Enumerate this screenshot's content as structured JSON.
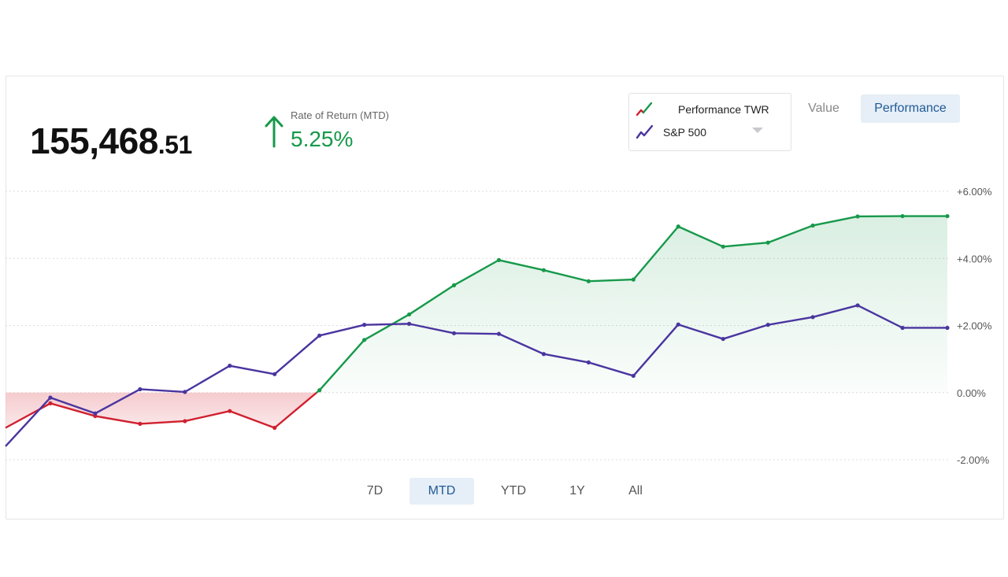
{
  "summary": {
    "balance_whole": "155,468",
    "balance_cents": ".51",
    "ror_label": "Rate of Return (MTD)",
    "ror_value": "5.25%"
  },
  "legend": {
    "series_1": "Performance TWR",
    "series_2": "S&P 500"
  },
  "view_toggle": {
    "value_label": "Value",
    "performance_label": "Performance",
    "active": "Performance"
  },
  "ranges": [
    {
      "label": "7D",
      "active": false
    },
    {
      "label": "MTD",
      "active": true
    },
    {
      "label": "YTD",
      "active": false
    },
    {
      "label": "1Y",
      "active": false
    },
    {
      "label": "All",
      "active": false
    }
  ],
  "colors": {
    "positive": "#16994a",
    "negative": "#d0202f",
    "benchmark": "#4a35a0",
    "positive_fill": "#16994a",
    "negative_fill": "#f4c6c9"
  },
  "chart_data": {
    "type": "line",
    "title": "",
    "xlabel": "",
    "ylabel": "",
    "ylim": [
      -2,
      6
    ],
    "y_ticks": [
      "+6.00%",
      "+4.00%",
      "+2.00%",
      "0.00%",
      "-2.00%"
    ],
    "y_tick_values": [
      6,
      4,
      2,
      0,
      -2
    ],
    "x": [
      0,
      1,
      2,
      3,
      4,
      5,
      6,
      7,
      8,
      9,
      10,
      11,
      12,
      13,
      14,
      15,
      16,
      17,
      18,
      19,
      20,
      21
    ],
    "series": [
      {
        "name": "Performance TWR",
        "values": [
          -1.05,
          -0.32,
          -0.7,
          -0.93,
          -0.85,
          -0.55,
          -1.05,
          0.07,
          1.57,
          2.33,
          3.2,
          3.95,
          3.65,
          3.32,
          3.37,
          4.95,
          4.35,
          4.47,
          4.98,
          5.25,
          5.26,
          5.26
        ]
      },
      {
        "name": "S&P 500",
        "values": [
          -1.6,
          -0.15,
          -0.62,
          0.1,
          0.02,
          0.8,
          0.55,
          1.7,
          2.02,
          2.05,
          1.77,
          1.75,
          1.15,
          0.9,
          0.5,
          2.03,
          1.6,
          2.02,
          2.25,
          2.6,
          1.93,
          1.93
        ]
      }
    ]
  }
}
